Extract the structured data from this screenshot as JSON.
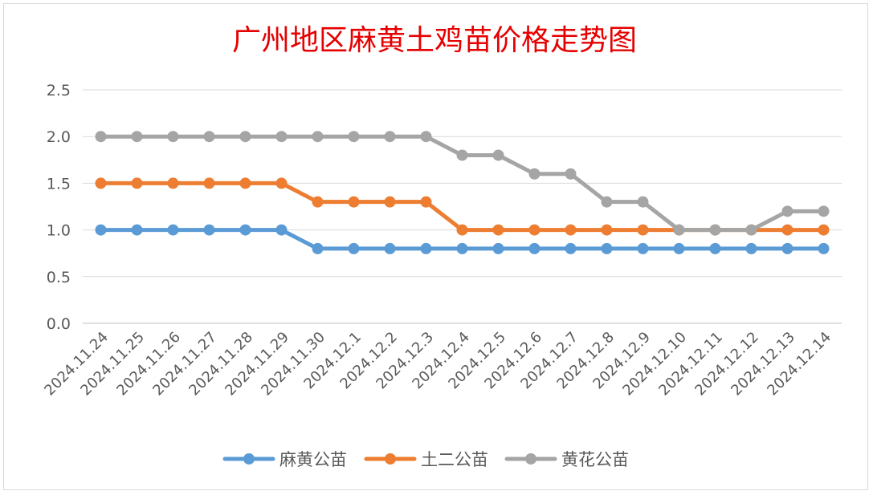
{
  "chart_data": {
    "type": "line",
    "title": "广州地区麻黄土鸡苗价格走势图",
    "title_color": "#e60000",
    "categories": [
      "2024.11.24",
      "2024.11.25",
      "2024.11.26",
      "2024.11.27",
      "2024.11.28",
      "2024.11.29",
      "2024.11.30",
      "2024.12.1",
      "2024.12.2",
      "2024.12.3",
      "2024.12.4",
      "2024.12.5",
      "2024.12.6",
      "2024.12.7",
      "2024.12.8",
      "2024.12.9",
      "2024.12.10",
      "2024.12.11",
      "2024.12.12",
      "2024.12.13",
      "2024.12.14"
    ],
    "series": [
      {
        "name": "麻黄公苗",
        "color": "#5b9bd5",
        "values": [
          1.0,
          1.0,
          1.0,
          1.0,
          1.0,
          1.0,
          0.8,
          0.8,
          0.8,
          0.8,
          0.8,
          0.8,
          0.8,
          0.8,
          0.8,
          0.8,
          0.8,
          0.8,
          0.8,
          0.8,
          0.8
        ]
      },
      {
        "name": "土二公苗",
        "color": "#ed7d31",
        "values": [
          1.5,
          1.5,
          1.5,
          1.5,
          1.5,
          1.5,
          1.3,
          1.3,
          1.3,
          1.3,
          1.0,
          1.0,
          1.0,
          1.0,
          1.0,
          1.0,
          1.0,
          1.0,
          1.0,
          1.0,
          1.0
        ]
      },
      {
        "name": "黄花公苗",
        "color": "#a5a5a5",
        "values": [
          2.0,
          2.0,
          2.0,
          2.0,
          2.0,
          2.0,
          2.0,
          2.0,
          2.0,
          2.0,
          1.8,
          1.8,
          1.6,
          1.6,
          1.3,
          1.3,
          1.0,
          1.0,
          1.0,
          1.2,
          1.2
        ]
      }
    ],
    "ylim": [
      0,
      2.5
    ],
    "yticks": [
      "0.0",
      "0.5",
      "1.0",
      "1.5",
      "2.0",
      "2.5"
    ],
    "grid": true,
    "legend_position": "bottom"
  }
}
